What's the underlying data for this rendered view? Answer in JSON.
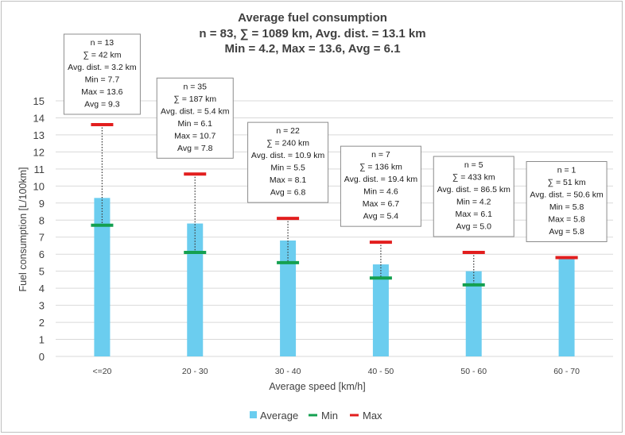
{
  "chart_data": {
    "type": "bar",
    "title": "Average fuel consumption",
    "subtitle_lines": [
      "n = 83, ∑ = 1089 km, Avg. dist. = 13.1 km",
      "Min = 4.2, Max = 13.6, Avg = 6.1"
    ],
    "xlabel": "Average speed [km/h]",
    "ylabel": "Fuel consumption [L/100km]",
    "ylim": [
      0,
      15
    ],
    "ytick_step": 1,
    "grid": true,
    "legend_position": "bottom",
    "categories": [
      "<=20",
      "20 - 30",
      "30 - 40",
      "40 - 50",
      "50 - 60",
      "60 - 70"
    ],
    "series": [
      {
        "name": "Average",
        "values": [
          9.3,
          7.8,
          6.8,
          5.4,
          5.0,
          5.8
        ],
        "color": "#6bcdef"
      },
      {
        "name": "Min",
        "values": [
          7.7,
          6.1,
          5.5,
          4.6,
          4.2,
          5.8
        ],
        "color": "#14a050"
      },
      {
        "name": "Max",
        "values": [
          13.6,
          10.7,
          8.1,
          6.7,
          6.1,
          5.8
        ],
        "color": "#e21e1e"
      }
    ],
    "annotations": [
      [
        "n = 13",
        "∑ = 42 km",
        "Avg. dist. = 3.2 km",
        "Min = 7.7",
        "Max = 13.6",
        "Avg =  9.3"
      ],
      [
        "n = 35",
        "∑ = 187 km",
        "Avg. dist. = 5.4 km",
        "Min = 6.1",
        "Max = 10.7",
        "Avg =  7.8"
      ],
      [
        "n = 22",
        "∑ = 240 km",
        "Avg. dist. = 10.9 km",
        "Min = 5.5",
        "Max = 8.1",
        "Avg =  6.8"
      ],
      [
        "n = 7",
        "∑ = 136 km",
        "Avg. dist. = 19.4 km",
        "Min = 4.6",
        "Max = 6.7",
        "Avg =  5.4"
      ],
      [
        "n = 5",
        "∑ = 433 km",
        "Avg. dist. = 86.5 km",
        "Min = 4.2",
        "Max = 6.1",
        "Avg =  5.0"
      ],
      [
        "n = 1",
        "∑ = 51 km",
        "Avg. dist. = 50.6 km",
        "Min = 5.8",
        "Max = 5.8",
        "Avg =  5.8"
      ]
    ]
  }
}
